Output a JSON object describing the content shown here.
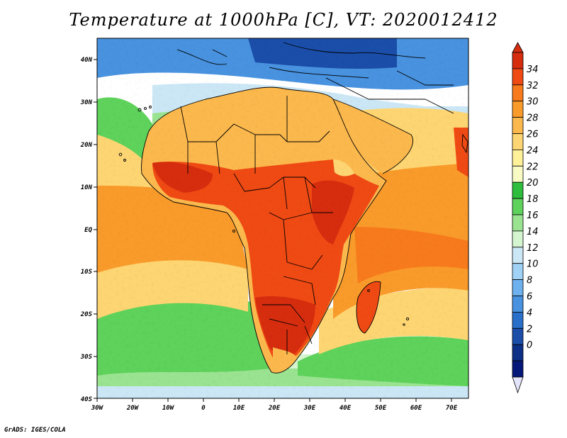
{
  "title": "Temperature at 1000hPa [C], VT: 2020012412",
  "credit": "GrADS: IGES/COLA",
  "map": {
    "type": "filled-contour-map",
    "variable": "Temperature",
    "level": "1000hPa",
    "units": "C",
    "valid_time": "2020012412",
    "lon_range": [
      -30,
      75
    ],
    "lat_range": [
      -40,
      45
    ],
    "lon_labels": [
      "30W",
      "20W",
      "10W",
      "0",
      "10E",
      "20E",
      "30E",
      "40E",
      "50E",
      "60E",
      "70E"
    ],
    "lat_labels": [
      "40N",
      "30N",
      "20N",
      "10N",
      "EQ",
      "10S",
      "20S",
      "30S",
      "40S"
    ]
  },
  "colorbar": {
    "labels": [
      "34",
      "32",
      "30",
      "28",
      "26",
      "24",
      "22",
      "20",
      "18",
      "16",
      "14",
      "12",
      "10",
      "8",
      "6",
      "4",
      "2",
      "0"
    ],
    "colors": [
      "#d62d0f",
      "#ef4a14",
      "#f77b1c",
      "#f99b2b",
      "#fbb84d",
      "#fdd572",
      "#fff09a",
      "#f8fcc4",
      "#2ebd3c",
      "#5ed25b",
      "#9ae391",
      "#d5f5d0",
      "#cbe7f6",
      "#9fd2f5",
      "#6eb1ef",
      "#4892df",
      "#2a6fc9",
      "#1a4ea9",
      "#0d2f85",
      "#06177a"
    ],
    "low_extension_color": "#e4e4fa"
  }
}
